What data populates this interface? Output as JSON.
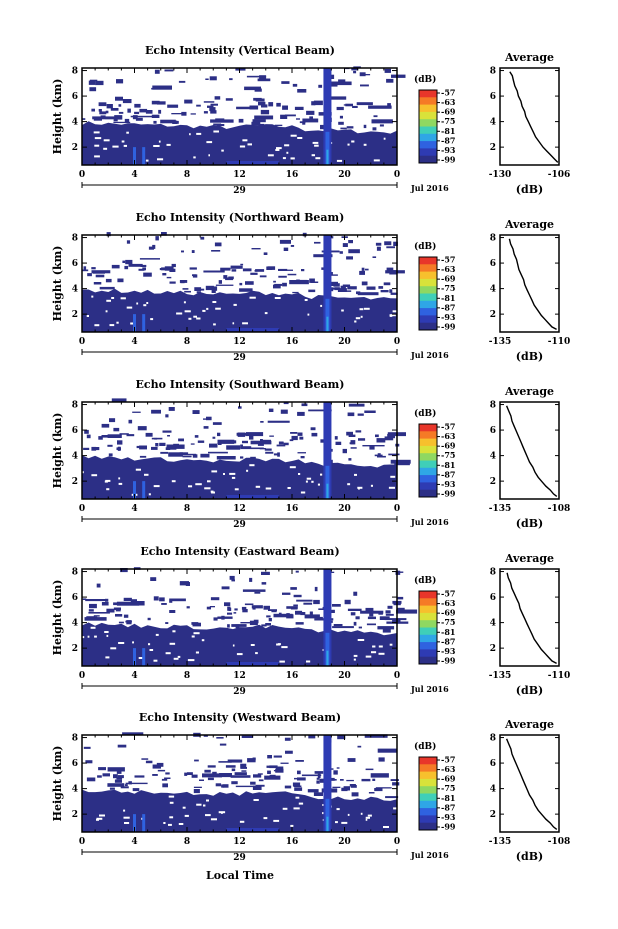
{
  "figure": {
    "xlabel": "Local Time",
    "date_label": "29",
    "month_label": "Jul 2016",
    "ylabel": "Height (km)",
    "avg_title": "Average",
    "avg_xlabel": "(dB)",
    "colorbar_unit": "(dB)",
    "colorbar_ticks": [
      "-57",
      "-63",
      "-69",
      "-75",
      "-81",
      "-87",
      "-93",
      "-99"
    ],
    "colorbar_colors": [
      "#e8362a",
      "#f57a26",
      "#f7c02d",
      "#d9e23a",
      "#8fd861",
      "#3fcfb8",
      "#2fa6e6",
      "#2f62e0",
      "#2e3bb3",
      "#2c2f86"
    ]
  },
  "chart_data": [
    {
      "type": "heatmap",
      "title": "Echo Intensity (Vertical Beam)",
      "x_ticks": [
        "0",
        "4",
        "8",
        "12",
        "16",
        "20",
        "0"
      ],
      "xlim": [
        0,
        24
      ],
      "y_ticks": [
        "2",
        "4",
        "6",
        "8"
      ],
      "ylim": [
        0.6,
        8.2
      ],
      "avg_profile": {
        "xlim": [
          -130,
          -106
        ],
        "x_ticks": [
          "-130",
          "-106"
        ],
        "y_ticks": [
          "2",
          "4",
          "6",
          "8"
        ],
        "points": [
          [
            -126,
            7.9
          ],
          [
            -125,
            7.6
          ],
          [
            -124.5,
            7.2
          ],
          [
            -124,
            6.8
          ],
          [
            -123,
            6.4
          ],
          [
            -122.5,
            6.0
          ],
          [
            -121.5,
            5.6
          ],
          [
            -121,
            5.2
          ],
          [
            -120,
            4.8
          ],
          [
            -119.5,
            4.4
          ],
          [
            -118.5,
            4.0
          ],
          [
            -117.5,
            3.6
          ],
          [
            -116.5,
            3.2
          ],
          [
            -115.5,
            2.8
          ],
          [
            -114,
            2.4
          ],
          [
            -112.5,
            2.0
          ],
          [
            -111,
            1.7
          ],
          [
            -109.5,
            1.4
          ],
          [
            -108,
            1.1
          ],
          [
            -106.5,
            0.8
          ]
        ]
      }
    },
    {
      "type": "heatmap",
      "title": "Echo Intensity (Northward Beam)",
      "x_ticks": [
        "0",
        "4",
        "8",
        "12",
        "16",
        "20",
        "0"
      ],
      "xlim": [
        0,
        24
      ],
      "y_ticks": [
        "2",
        "4",
        "6",
        "8"
      ],
      "ylim": [
        0.6,
        8.2
      ],
      "avg_profile": {
        "xlim": [
          -135,
          -110
        ],
        "x_ticks": [
          "-135",
          "-110"
        ],
        "y_ticks": [
          "2",
          "4",
          "6",
          "8"
        ],
        "points": [
          [
            -131,
            7.9
          ],
          [
            -130.5,
            7.5
          ],
          [
            -129.5,
            7.1
          ],
          [
            -129,
            6.7
          ],
          [
            -128,
            6.3
          ],
          [
            -127.5,
            5.9
          ],
          [
            -127,
            5.5
          ],
          [
            -126,
            5.1
          ],
          [
            -125,
            4.7
          ],
          [
            -124.5,
            4.3
          ],
          [
            -123.5,
            3.9
          ],
          [
            -122.5,
            3.5
          ],
          [
            -121.5,
            3.1
          ],
          [
            -120.5,
            2.7
          ],
          [
            -119,
            2.3
          ],
          [
            -117.5,
            1.9
          ],
          [
            -116,
            1.6
          ],
          [
            -114.5,
            1.3
          ],
          [
            -113,
            1.0
          ],
          [
            -111,
            0.8
          ]
        ]
      }
    },
    {
      "type": "heatmap",
      "title": "Echo Intensity (Southward Beam)",
      "x_ticks": [
        "0",
        "4",
        "8",
        "12",
        "16",
        "20",
        "0"
      ],
      "xlim": [
        0,
        24
      ],
      "y_ticks": [
        "2",
        "4",
        "6",
        "8"
      ],
      "ylim": [
        0.6,
        8.2
      ],
      "avg_profile": {
        "xlim": [
          -135,
          -108
        ],
        "x_ticks": [
          "-135",
          "-108"
        ],
        "y_ticks": [
          "2",
          "4",
          "6",
          "8"
        ],
        "points": [
          [
            -132,
            7.9
          ],
          [
            -131,
            7.5
          ],
          [
            -130,
            7.1
          ],
          [
            -129.5,
            6.7
          ],
          [
            -128.5,
            6.3
          ],
          [
            -127.5,
            5.9
          ],
          [
            -126.5,
            5.5
          ],
          [
            -125.5,
            5.1
          ],
          [
            -124.5,
            4.7
          ],
          [
            -123.5,
            4.3
          ],
          [
            -122.5,
            3.9
          ],
          [
            -121.5,
            3.5
          ],
          [
            -120,
            3.1
          ],
          [
            -119,
            2.7
          ],
          [
            -117.5,
            2.3
          ],
          [
            -115.5,
            1.9
          ],
          [
            -114,
            1.6
          ],
          [
            -112,
            1.3
          ],
          [
            -110.5,
            1.0
          ],
          [
            -109,
            0.8
          ]
        ]
      }
    },
    {
      "type": "heatmap",
      "title": "Echo Intensity (Eastward Beam)",
      "x_ticks": [
        "0",
        "4",
        "8",
        "12",
        "16",
        "20",
        "0"
      ],
      "xlim": [
        0,
        24
      ],
      "y_ticks": [
        "2",
        "4",
        "6",
        "8"
      ],
      "ylim": [
        0.6,
        8.2
      ],
      "avg_profile": {
        "xlim": [
          -135,
          -110
        ],
        "x_ticks": [
          "-135",
          "-110"
        ],
        "y_ticks": [
          "2",
          "4",
          "6",
          "8"
        ],
        "points": [
          [
            -132,
            7.9
          ],
          [
            -131.5,
            7.5
          ],
          [
            -130.5,
            7.1
          ],
          [
            -130,
            6.7
          ],
          [
            -129,
            6.3
          ],
          [
            -128,
            5.9
          ],
          [
            -127,
            5.5
          ],
          [
            -126.5,
            5.1
          ],
          [
            -125.5,
            4.7
          ],
          [
            -124.5,
            4.3
          ],
          [
            -123.5,
            3.9
          ],
          [
            -122.5,
            3.5
          ],
          [
            -121.5,
            3.1
          ],
          [
            -120.5,
            2.7
          ],
          [
            -119,
            2.3
          ],
          [
            -117.5,
            1.9
          ],
          [
            -116,
            1.6
          ],
          [
            -114.5,
            1.3
          ],
          [
            -113,
            1.0
          ],
          [
            -111,
            0.8
          ]
        ]
      }
    },
    {
      "type": "heatmap",
      "title": "Echo Intensity (Westward Beam)",
      "x_ticks": [
        "0",
        "4",
        "8",
        "12",
        "16",
        "20",
        "0"
      ],
      "xlim": [
        0,
        24
      ],
      "y_ticks": [
        "2",
        "4",
        "6",
        "8"
      ],
      "ylim": [
        0.6,
        8.2
      ],
      "avg_profile": {
        "xlim": [
          -135,
          -108
        ],
        "x_ticks": [
          "-135",
          "-108"
        ],
        "y_ticks": [
          "2",
          "4",
          "6",
          "8"
        ],
        "points": [
          [
            -132,
            7.9
          ],
          [
            -131,
            7.5
          ],
          [
            -130,
            7.1
          ],
          [
            -129.5,
            6.7
          ],
          [
            -128.5,
            6.3
          ],
          [
            -127.5,
            5.9
          ],
          [
            -126.5,
            5.5
          ],
          [
            -125.5,
            5.1
          ],
          [
            -124.5,
            4.7
          ],
          [
            -123.5,
            4.3
          ],
          [
            -122.5,
            3.9
          ],
          [
            -121.5,
            3.5
          ],
          [
            -120,
            3.1
          ],
          [
            -119,
            2.7
          ],
          [
            -117.5,
            2.3
          ],
          [
            -115.5,
            1.9
          ],
          [
            -114,
            1.6
          ],
          [
            -112,
            1.3
          ],
          [
            -110.5,
            1.0
          ],
          [
            -109,
            0.8
          ]
        ]
      }
    }
  ]
}
